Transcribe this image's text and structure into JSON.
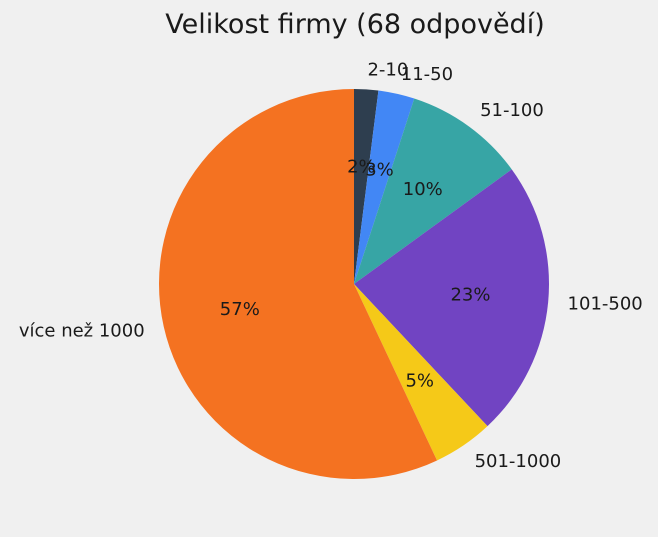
{
  "chart_data": {
    "type": "pie",
    "title": "Velikost firmy (68 odpovědí)",
    "categories": [
      "2-10",
      "11-50",
      "51-100",
      "101-500",
      "501-1000",
      "více než 1000"
    ],
    "values": [
      2,
      3,
      10,
      23,
      5,
      57
    ],
    "value_labels": [
      "2%",
      "3%",
      "10%",
      "23%",
      "5%",
      "57%"
    ],
    "colors": [
      "#2e3e4f",
      "#4287f5",
      "#37a5a5",
      "#7144c2",
      "#f5c918",
      "#f47221"
    ],
    "start_angle_deg": 90,
    "direction": "clockwise"
  }
}
